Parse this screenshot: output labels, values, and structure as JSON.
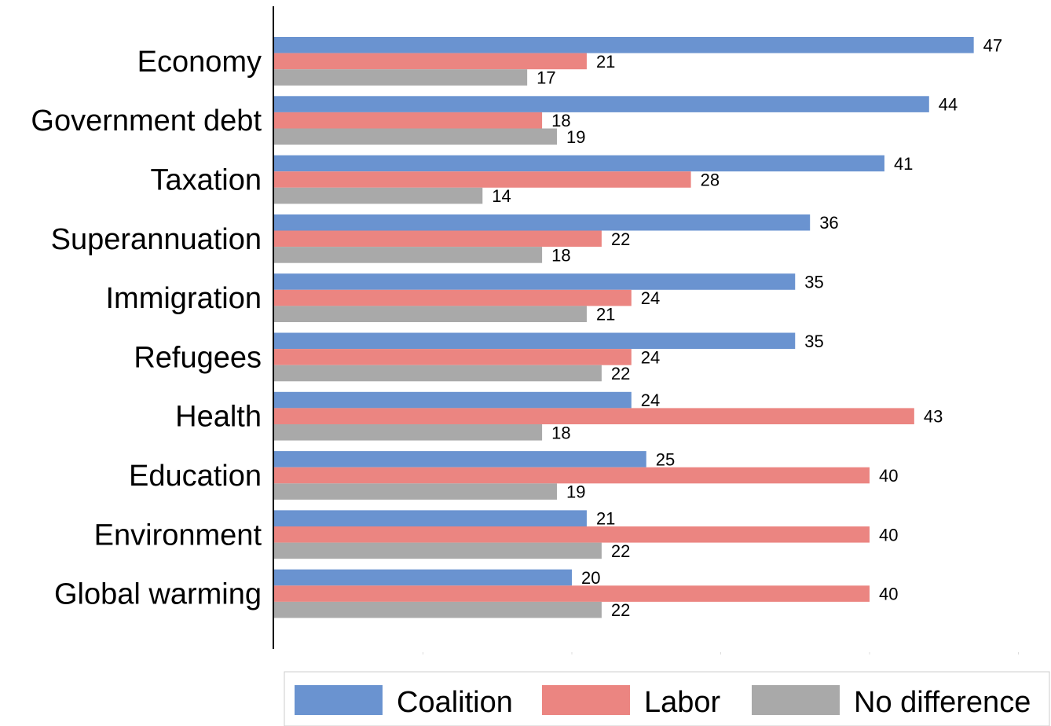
{
  "chart_data": {
    "type": "bar",
    "orientation": "horizontal",
    "categories": [
      "Economy",
      "Government debt",
      "Taxation",
      "Superannuation",
      "Immigration",
      "Refugees",
      "Health",
      "Education",
      "Environment",
      "Global warming"
    ],
    "series": [
      {
        "name": "Coalition",
        "color": "#6a93d0",
        "values": [
          47,
          44,
          41,
          36,
          35,
          35,
          24,
          25,
          21,
          20
        ]
      },
      {
        "name": "Labor",
        "color": "#eb8581",
        "values": [
          21,
          18,
          28,
          22,
          24,
          24,
          43,
          40,
          40,
          40
        ]
      },
      {
        "name": "No difference",
        "color": "#a9a9a9",
        "values": [
          17,
          19,
          14,
          18,
          21,
          22,
          18,
          19,
          22,
          22
        ]
      }
    ],
    "title": "",
    "xlabel": "",
    "ylabel": "",
    "xlim": [
      0,
      50
    ],
    "grid": false,
    "legend_position": "bottom"
  }
}
